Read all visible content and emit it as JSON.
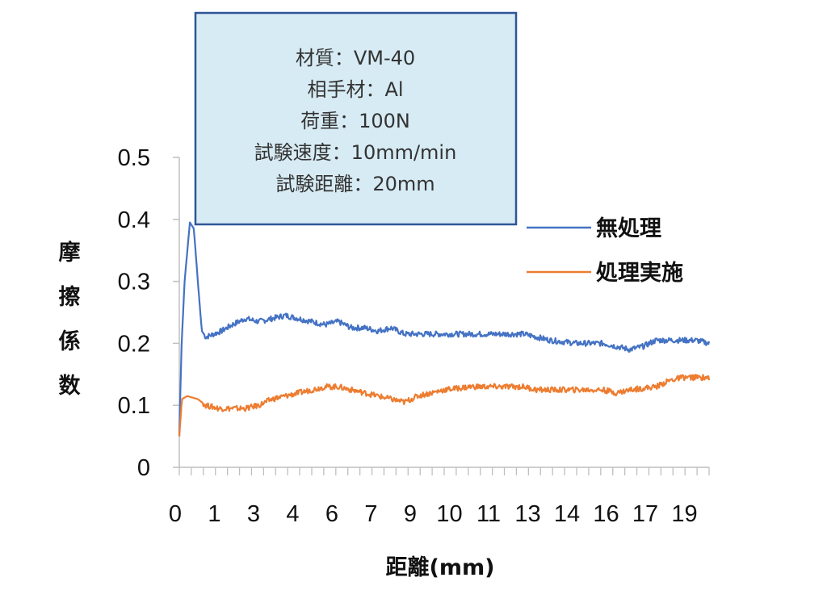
{
  "chart_data": {
    "type": "line",
    "xlabel": "距離(mm)",
    "ylabel": "摩擦係数",
    "xlim": [
      0,
      20
    ],
    "ylim": [
      0,
      0.5
    ],
    "yticks": [
      "0",
      "0.1",
      "0.2",
      "0.3",
      "0.4",
      "0.5"
    ],
    "xtick_labels": [
      "0",
      "1",
      "3",
      "4",
      "6",
      "7",
      "9",
      "10",
      "11",
      "13",
      "14",
      "16",
      "17",
      "19"
    ],
    "grid": false,
    "legend_position": "right",
    "annotation": [
      "材質：VM-40",
      "相手材：Al",
      "荷重：100N",
      "試験速度：10mm/min",
      "試験距離：20mm"
    ],
    "series": [
      {
        "name": "無処理",
        "color": "#4472c4",
        "points": [
          [
            0,
            0.05
          ],
          [
            0.08,
            0.19
          ],
          [
            0.2,
            0.3
          ],
          [
            0.4,
            0.395
          ],
          [
            0.55,
            0.385
          ],
          [
            0.7,
            0.3
          ],
          [
            0.85,
            0.22
          ],
          [
            1.0,
            0.21
          ],
          [
            1.3,
            0.215
          ],
          [
            1.6,
            0.22
          ],
          [
            2.0,
            0.23
          ],
          [
            2.5,
            0.24
          ],
          [
            3.0,
            0.235
          ],
          [
            3.5,
            0.24
          ],
          [
            4.0,
            0.245
          ],
          [
            4.5,
            0.24
          ],
          [
            5.0,
            0.235
          ],
          [
            5.5,
            0.23
          ],
          [
            6.0,
            0.235
          ],
          [
            6.5,
            0.225
          ],
          [
            7.0,
            0.225
          ],
          [
            7.5,
            0.22
          ],
          [
            8.0,
            0.225
          ],
          [
            8.5,
            0.215
          ],
          [
            9.0,
            0.215
          ],
          [
            10.0,
            0.215
          ],
          [
            11.0,
            0.215
          ],
          [
            12.0,
            0.215
          ],
          [
            13.0,
            0.215
          ],
          [
            13.5,
            0.21
          ],
          [
            14.0,
            0.205
          ],
          [
            15.0,
            0.2
          ],
          [
            16.0,
            0.2
          ],
          [
            16.5,
            0.195
          ],
          [
            17.0,
            0.19
          ],
          [
            17.5,
            0.195
          ],
          [
            18.0,
            0.205
          ],
          [
            18.5,
            0.205
          ],
          [
            19.0,
            0.205
          ],
          [
            19.5,
            0.205
          ],
          [
            20.0,
            0.2
          ]
        ]
      },
      {
        "name": "処理実施",
        "color": "#ed7d31",
        "points": [
          [
            0,
            0.05
          ],
          [
            0.1,
            0.11
          ],
          [
            0.3,
            0.115
          ],
          [
            0.7,
            0.11
          ],
          [
            1.0,
            0.1
          ],
          [
            1.5,
            0.095
          ],
          [
            2.0,
            0.095
          ],
          [
            2.5,
            0.095
          ],
          [
            3.0,
            0.1
          ],
          [
            3.5,
            0.11
          ],
          [
            4.0,
            0.115
          ],
          [
            4.5,
            0.12
          ],
          [
            5.0,
            0.125
          ],
          [
            5.5,
            0.13
          ],
          [
            6.0,
            0.13
          ],
          [
            6.5,
            0.125
          ],
          [
            7.0,
            0.12
          ],
          [
            7.5,
            0.115
          ],
          [
            8.0,
            0.11
          ],
          [
            8.5,
            0.105
          ],
          [
            9.0,
            0.115
          ],
          [
            9.5,
            0.12
          ],
          [
            10.0,
            0.125
          ],
          [
            11.0,
            0.13
          ],
          [
            12.0,
            0.13
          ],
          [
            13.0,
            0.13
          ],
          [
            13.5,
            0.125
          ],
          [
            14.0,
            0.125
          ],
          [
            15.0,
            0.125
          ],
          [
            16.0,
            0.125
          ],
          [
            16.5,
            0.12
          ],
          [
            17.0,
            0.125
          ],
          [
            18.0,
            0.13
          ],
          [
            18.5,
            0.14
          ],
          [
            19.0,
            0.145
          ],
          [
            19.5,
            0.145
          ],
          [
            20.0,
            0.145
          ]
        ]
      }
    ]
  }
}
